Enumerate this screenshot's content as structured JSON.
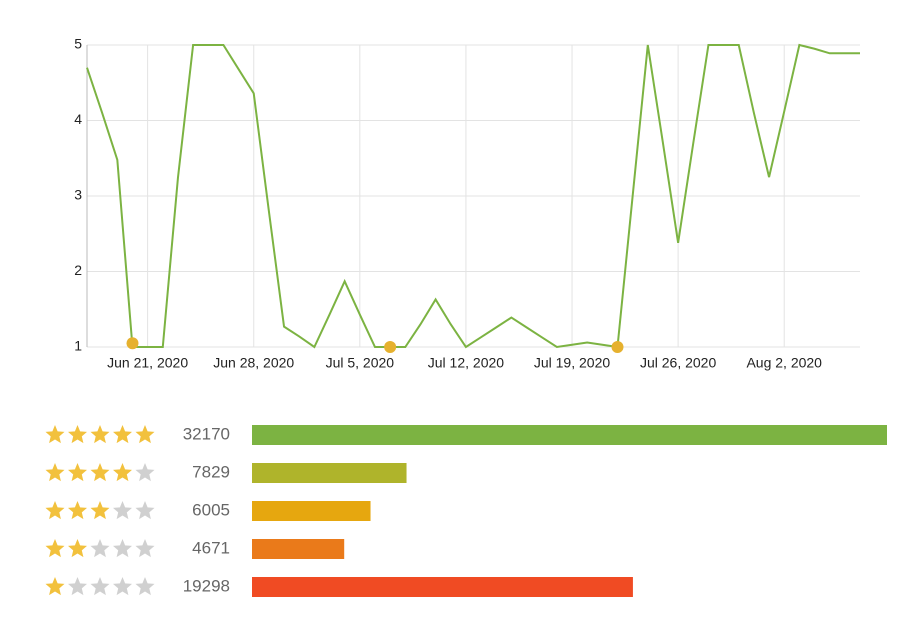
{
  "chart_data": {
    "type": "line",
    "x": [
      "2020-06-17",
      "2020-06-18",
      "2020-06-19",
      "2020-06-20",
      "2020-06-21",
      "2020-06-22",
      "2020-06-23",
      "2020-06-24",
      "2020-06-25",
      "2020-06-26",
      "2020-06-27",
      "2020-06-28",
      "2020-06-29",
      "2020-06-30",
      "2020-07-01",
      "2020-07-02",
      "2020-07-03",
      "2020-07-04",
      "2020-07-05",
      "2020-07-06",
      "2020-07-07",
      "2020-07-08",
      "2020-07-09",
      "2020-07-10",
      "2020-07-11",
      "2020-07-12",
      "2020-07-13",
      "2020-07-14",
      "2020-07-15",
      "2020-07-16",
      "2020-07-17",
      "2020-07-18",
      "2020-07-19",
      "2020-07-20",
      "2020-07-21",
      "2020-07-22",
      "2020-07-23",
      "2020-07-24",
      "2020-07-25",
      "2020-07-26",
      "2020-07-27",
      "2020-07-28",
      "2020-07-29",
      "2020-07-30",
      "2020-07-31",
      "2020-08-01",
      "2020-08-02",
      "2020-08-03",
      "2020-08-04",
      "2020-08-05",
      "2020-08-06",
      "2020-08-07"
    ],
    "series": [
      {
        "color": "#7cb342",
        "values": [
          4.7,
          4.1,
          3.48,
          1,
          1,
          1,
          3.24,
          5,
          5,
          5,
          4.68,
          4.36,
          2.8,
          1.27,
          1.14,
          1,
          1.43,
          1.87,
          1.43,
          1,
          1,
          1,
          1.3,
          1.63,
          1.3,
          1,
          1.13,
          1.26,
          1.39,
          1.26,
          1.13,
          1,
          1.03,
          1.06,
          1.03,
          1,
          3,
          5,
          3.7,
          2.38,
          3.7,
          5,
          5,
          5,
          4.1,
          3.25,
          4.12,
          5,
          4.95,
          4.89,
          4.89,
          4.89
        ]
      }
    ],
    "markers": {
      "color": "#e6b12e",
      "x": [
        "2020-06-20",
        "2020-07-07",
        "2020-07-22"
      ],
      "values": [
        1.05,
        1,
        1
      ]
    },
    "xlim": [
      "2020-06-17",
      "2020-08-07"
    ],
    "xticks": [
      {
        "value": "2020-06-21",
        "label": "Jun 21, 2020"
      },
      {
        "value": "2020-06-28",
        "label": "Jun 28, 2020"
      },
      {
        "value": "2020-07-05",
        "label": "Jul 5, 2020"
      },
      {
        "value": "2020-07-12",
        "label": "Jul 12, 2020"
      },
      {
        "value": "2020-07-19",
        "label": "Jul 19, 2020"
      },
      {
        "value": "2020-07-26",
        "label": "Jul 26, 2020"
      },
      {
        "value": "2020-08-02",
        "label": "Aug 2, 2020"
      }
    ],
    "ylim": [
      1,
      5
    ],
    "yticks": [
      1,
      2,
      3,
      4,
      5
    ],
    "grid": true
  },
  "ratings": [
    {
      "stars": 5,
      "count": 32170,
      "color": "#7cb342"
    },
    {
      "stars": 4,
      "count": 7829,
      "color": "#afb42b"
    },
    {
      "stars": 3,
      "count": 6005,
      "color": "#e6a70f"
    },
    {
      "stars": 2,
      "count": 4671,
      "color": "#ea7a1a"
    },
    {
      "stars": 1,
      "count": 19298,
      "color": "#f04b23"
    }
  ]
}
